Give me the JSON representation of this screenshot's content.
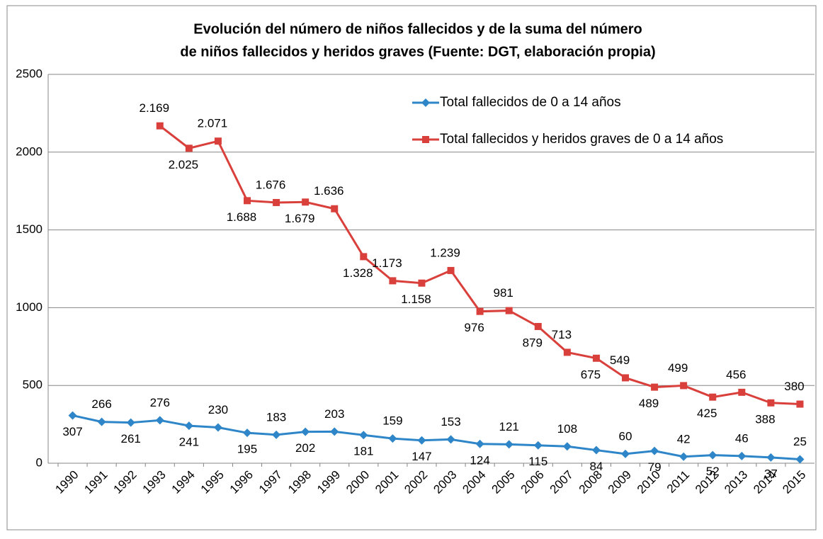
{
  "chart_data": {
    "type": "line",
    "title": [
      "Evolución del número de niños fallecidos y de la suma del número",
      "de niños fallecidos y heridos graves (Fuente: DGT, elaboración propia)"
    ],
    "categories": [
      "1990",
      "1991",
      "1992",
      "1993",
      "1994",
      "1995",
      "1996",
      "1997",
      "1998",
      "1999",
      "2000",
      "2001",
      "2002",
      "2003",
      "2004",
      "2005",
      "2006",
      "2007",
      "2008",
      "2009",
      "2010",
      "2011",
      "2012",
      "2013",
      "2014",
      "2015"
    ],
    "series": [
      {
        "name": "Total fallecidos de 0 a 14 años",
        "color": "#2e86c8",
        "marker": "diamond",
        "values": [
          307,
          266,
          261,
          276,
          241,
          230,
          195,
          183,
          202,
          203,
          181,
          159,
          147,
          153,
          124,
          121,
          115,
          108,
          84,
          60,
          79,
          42,
          52,
          46,
          37,
          25
        ]
      },
      {
        "name": "Total fallecidos y heridos graves de 0 a 14 años",
        "color": "#d9403b",
        "marker": "square",
        "values": [
          null,
          null,
          null,
          2169,
          2025,
          2071,
          1688,
          1676,
          1679,
          1636,
          1328,
          1173,
          1158,
          1239,
          976,
          981,
          879,
          713,
          675,
          549,
          489,
          499,
          425,
          456,
          388,
          380
        ],
        "value_labels": [
          null,
          null,
          null,
          "2.169",
          "2.025",
          "2.071",
          "1.688",
          "1.676",
          "1.679",
          "1.636",
          "1.328",
          "1.173",
          "1.158",
          "1.239",
          "976",
          "981",
          "879",
          "713",
          "675",
          "549",
          "489",
          "499",
          "425",
          "456",
          "388",
          "380"
        ]
      }
    ],
    "ylim": [
      0,
      2500
    ],
    "yticks": [
      0,
      500,
      1000,
      1500,
      2000,
      2500
    ],
    "grid": true
  }
}
